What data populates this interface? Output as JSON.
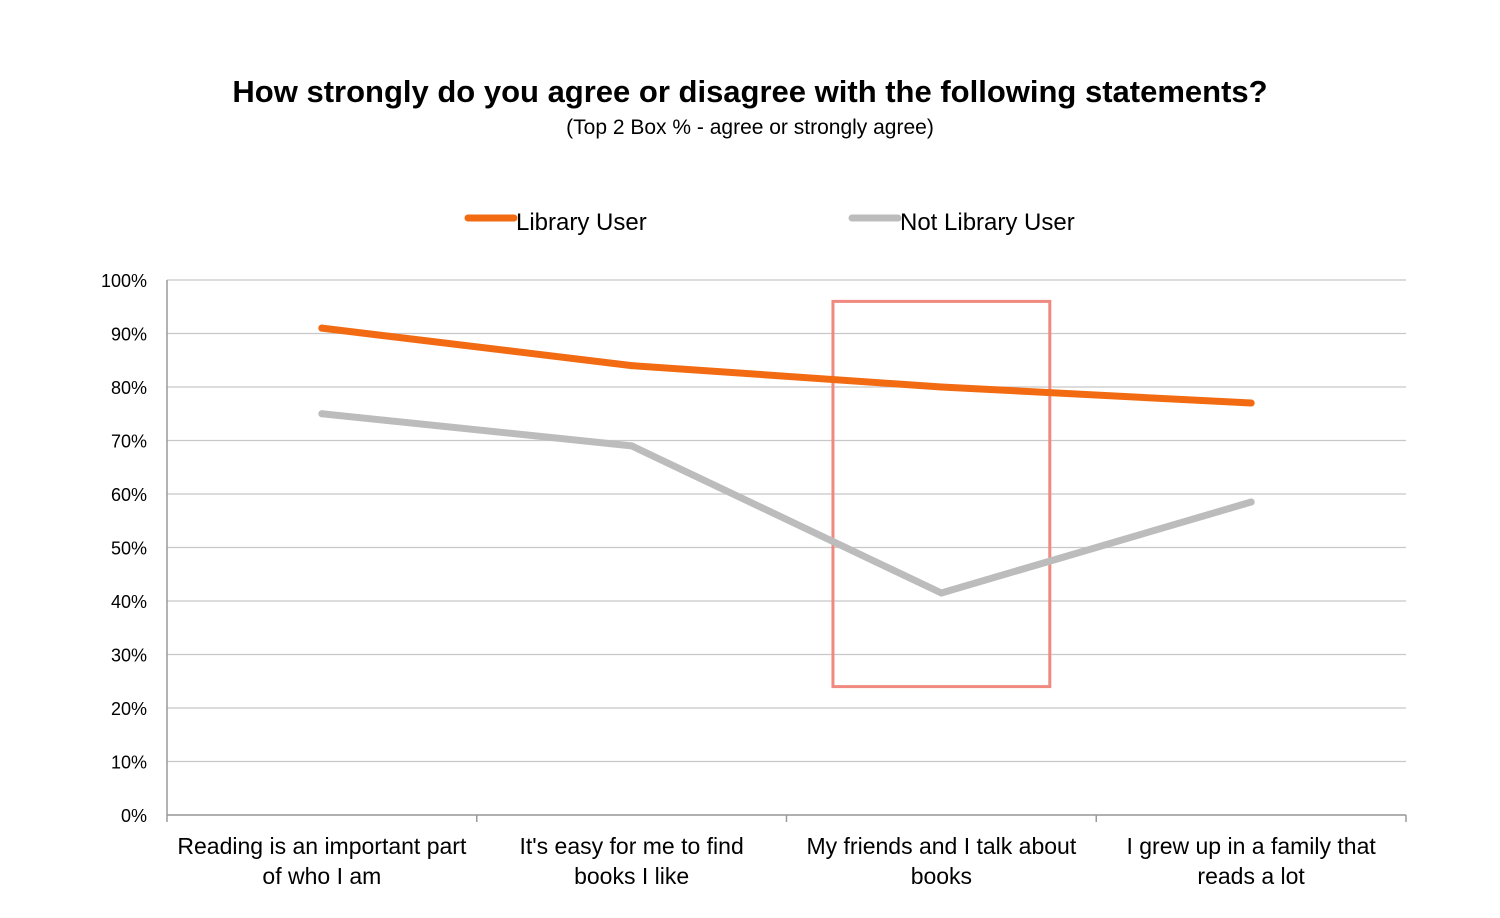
{
  "chart_data": {
    "type": "line",
    "title": "How strongly do you agree or disagree with the following statements?",
    "subtitle": "(Top 2 Box % - agree or strongly agree)",
    "categories": [
      [
        "Reading is an important part",
        "of who I am"
      ],
      [
        "It's easy for me to find",
        "books I like"
      ],
      [
        "My friends and I talk about",
        "books"
      ],
      [
        "I grew up in a family that",
        "reads a lot"
      ]
    ],
    "series": [
      {
        "name": "Library User",
        "color": "#f26b12",
        "values": [
          91,
          84,
          80,
          77
        ]
      },
      {
        "name": "Not Library User",
        "color": "#bcbcbc",
        "values": [
          75,
          69,
          41.5,
          58.5
        ]
      }
    ],
    "ylim": [
      0,
      100
    ],
    "yticks": [
      "0%",
      "10%",
      "20%",
      "30%",
      "40%",
      "50%",
      "60%",
      "70%",
      "80%",
      "90%",
      "100%"
    ],
    "grid": true,
    "legend_position": "top",
    "highlight": {
      "category_index": 2,
      "y_range": [
        24,
        96
      ],
      "color": "#f08a80"
    }
  }
}
